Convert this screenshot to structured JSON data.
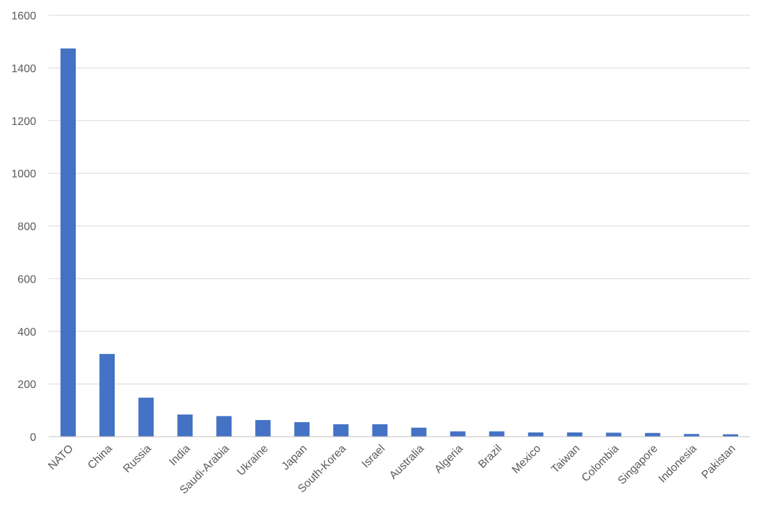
{
  "chart_data": {
    "type": "bar",
    "title": "",
    "xlabel": "",
    "ylabel": "",
    "categories": [
      "NATO",
      "China",
      "Russia",
      "India",
      "Saudi-Arabia",
      "Ukraine",
      "Japan",
      "South-Korea",
      "Israel",
      "Australia",
      "Algeria",
      "Brazil",
      "Mexico",
      "Taiwan",
      "Colombia",
      "Singapore",
      "Indonesia",
      "Pakistan"
    ],
    "values": [
      1474,
      314,
      148,
      84,
      78,
      63,
      55,
      47,
      47,
      34,
      20,
      20,
      16,
      16,
      15,
      14,
      10,
      9
    ],
    "ylim": [
      0,
      1600
    ],
    "yticks": [
      "0",
      "200",
      "400",
      "600",
      "800",
      "1000",
      "1200",
      "1400",
      "1600"
    ],
    "grid": true,
    "legend": "none",
    "bar_color": "#4472c4"
  }
}
